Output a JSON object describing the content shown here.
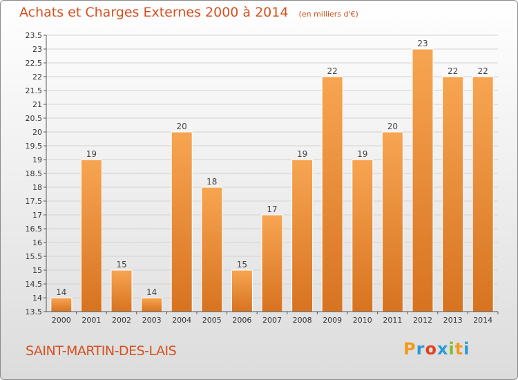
{
  "header": {
    "title": "Achats et Charges Externes 2000 à 2014",
    "unit": "(en milliers d'€)"
  },
  "footer": {
    "commune": "SAINT-MARTIN-DES-LAIS",
    "logo": {
      "letters": [
        "P",
        "r",
        "o",
        "x",
        "i",
        "t",
        "i"
      ],
      "colors": [
        "#f29a1a",
        "#2a9ad8",
        "#e2421e",
        "#2a9ad8",
        "#7fba2c",
        "#f29a1a",
        "#2a9ad8"
      ]
    }
  },
  "colors": {
    "accent": "#d4501f",
    "bar_light": "#f7a552",
    "bar_dark": "#d77320"
  },
  "chart_data": {
    "type": "bar",
    "categories": [
      "2000",
      "2001",
      "2002",
      "2003",
      "2004",
      "2005",
      "2006",
      "2007",
      "2008",
      "2009",
      "2010",
      "2011",
      "2012",
      "2013",
      "2014"
    ],
    "values": [
      14,
      19,
      15,
      14,
      20,
      18,
      15,
      17,
      19,
      22,
      19,
      20,
      23,
      22,
      22
    ],
    "value_labels": [
      "14",
      "19",
      "15",
      "14",
      "20",
      "18",
      "15",
      "17",
      "19",
      "22",
      "19",
      "20",
      "23",
      "22",
      "22"
    ],
    "ylim": [
      13.5,
      23.5
    ],
    "yticks": [
      13.5,
      14,
      14.5,
      15,
      15.5,
      16,
      16.5,
      17,
      17.5,
      18,
      18.5,
      19,
      19.5,
      20,
      20.5,
      21,
      21.5,
      22,
      22.5,
      23,
      23.5
    ],
    "ytick_labels": [
      "13.5",
      "14",
      "14.5",
      "15",
      "15.5",
      "16",
      "16.5",
      "17",
      "17.5",
      "18",
      "18.5",
      "19",
      "19.5",
      "20",
      "20.5",
      "21",
      "21.5",
      "22",
      "22.5",
      "23",
      "23.5"
    ],
    "grid": true
  }
}
